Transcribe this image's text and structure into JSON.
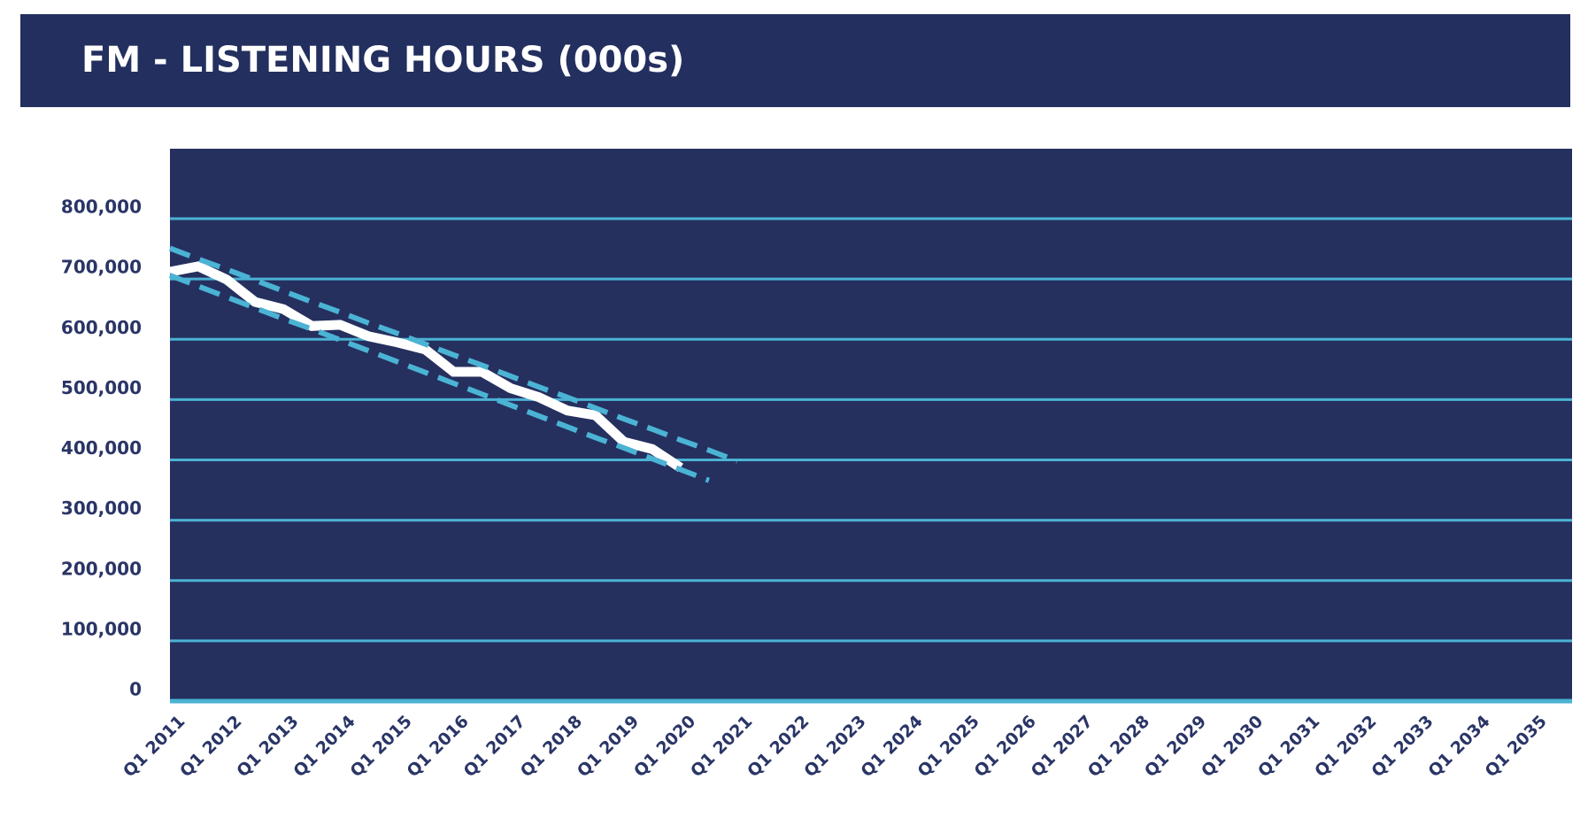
{
  "chart_data": {
    "type": "line",
    "title": "FM - LISTENING HOURS (000s)",
    "categories": [
      "Q1 2011",
      null,
      "Q1 2012",
      null,
      "Q1 2013",
      null,
      "Q1 2014",
      null,
      "Q1 2015",
      null,
      "Q1 2016",
      null,
      "Q1 2017",
      null,
      "Q1 2018",
      null,
      "Q1 2019",
      null,
      "Q1 2020",
      null,
      "Q1 2021",
      null,
      "Q1 2022",
      null,
      "Q1 2023",
      null,
      "Q1 2024",
      null,
      "Q1 2025",
      null,
      "Q1 2026",
      null,
      "Q1 2027",
      null,
      "Q1 2028",
      null,
      "Q1 2029",
      null,
      "Q1 2030",
      null,
      "Q1 2031",
      null,
      "Q1 2032",
      null,
      "Q1 2033",
      null,
      "Q1 2034",
      null,
      "Q1 2035"
    ],
    "series": [
      {
        "color": "#ffffff",
        "dashed": false,
        "values": [
          712000,
          721000,
          699000,
          662000,
          650000,
          622000,
          624000,
          605000,
          595000,
          583000,
          546000,
          546000,
          519000,
          504000,
          482000,
          474000,
          430000,
          418000,
          387000,
          null,
          null,
          null,
          null,
          null,
          null,
          null,
          null,
          null,
          null,
          null,
          null,
          null,
          null,
          null,
          null,
          null,
          null,
          null,
          null,
          null,
          null,
          null,
          null,
          null,
          null,
          null,
          null,
          null,
          null
        ]
      },
      {
        "color": "#4bb3d4",
        "dashed": true,
        "values": [
          751000,
          733000,
          716000,
          698000,
          680000,
          662000,
          645000,
          627000,
          610000,
          592000,
          574000,
          557000,
          539000,
          521000,
          504000,
          486000,
          468000,
          451000,
          433000,
          416000,
          398000,
          null,
          null,
          null,
          null,
          null,
          null,
          null,
          null,
          null,
          null,
          null,
          null,
          null,
          null,
          null,
          null,
          null,
          null,
          null,
          null,
          null,
          null,
          null,
          null,
          null,
          null,
          null,
          null
        ]
      },
      {
        "color": "#4bb3d4",
        "dashed": true,
        "values": [
          706000,
          688000,
          670000,
          652000,
          634000,
          617000,
          599000,
          581000,
          563000,
          545000,
          527000,
          509000,
          491000,
          473000,
          455000,
          437000,
          420000,
          402000,
          384000,
          366000,
          null,
          null,
          null,
          null,
          null,
          null,
          null,
          null,
          null,
          null,
          null,
          null,
          null,
          null,
          null,
          null,
          null,
          null,
          null,
          null,
          null,
          null,
          null,
          null,
          null,
          null,
          null,
          null,
          null
        ]
      }
    ],
    "ylim": [
      0,
      916000
    ],
    "yticks": [
      0,
      {
        "value": 100000,
        "label": "100,000"
      },
      {
        "value": 200000,
        "label": "200,000"
      },
      {
        "value": 300000,
        "label": "300,000"
      },
      {
        "value": 400000,
        "label": "400,000"
      },
      {
        "value": 500000,
        "label": "500,000"
      },
      {
        "value": 600000,
        "label": "600,000"
      },
      {
        "value": 700000,
        "label": "700,000"
      },
      {
        "value": 800000,
        "label": "800,000"
      }
    ],
    "grid": true
  }
}
